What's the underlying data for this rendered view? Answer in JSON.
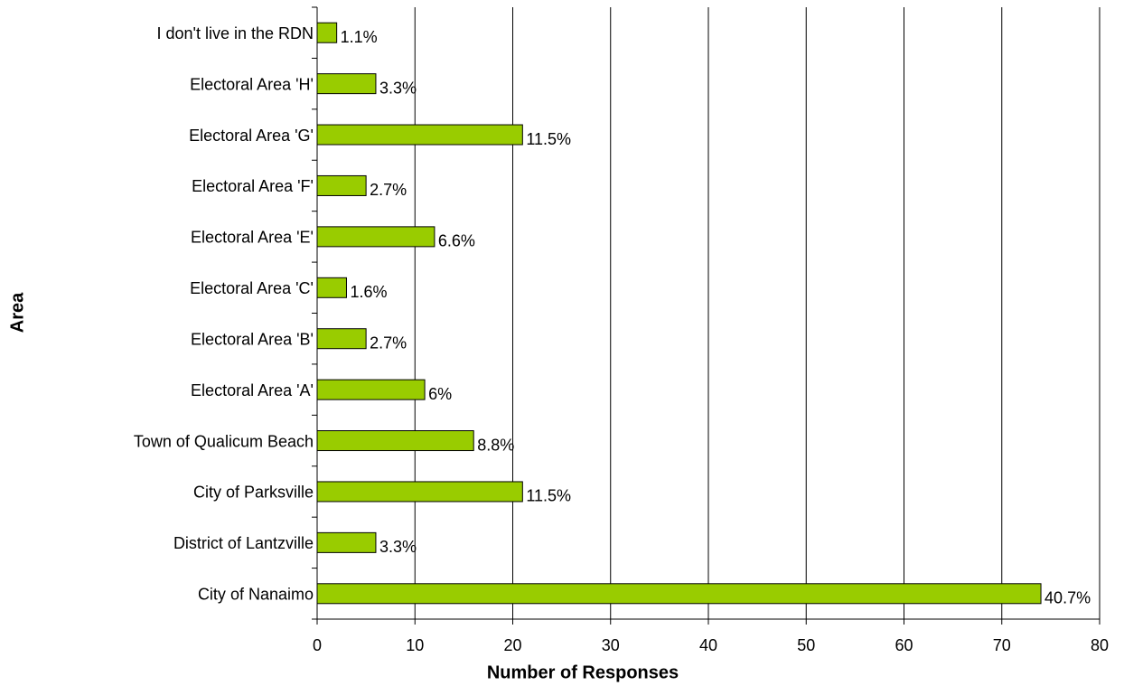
{
  "chart_data": {
    "type": "bar",
    "orientation": "horizontal",
    "categories": [
      "City of Nanaimo",
      "District of Lantzville",
      "City of Parksville",
      "Town of Qualicum Beach",
      "Electoral Area 'A'",
      "Electoral Area 'B'",
      "Electoral Area 'C'",
      "Electoral Area 'E'",
      "Electoral Area 'F'",
      "Electoral Area 'G'",
      "Electoral Area 'H'",
      "I don't live in the RDN"
    ],
    "values": [
      74,
      6,
      21,
      16,
      11,
      5,
      3,
      12,
      5,
      21,
      6,
      2
    ],
    "value_labels": [
      "40.7%",
      "3.3%",
      "11.5%",
      "8.8%",
      "6%",
      "2.7%",
      "1.6%",
      "6.6%",
      "2.7%",
      "11.5%",
      "3.3%",
      "1.1%"
    ],
    "color": "#99cc00",
    "xlim": [
      0,
      80
    ],
    "xticks": [
      0,
      10,
      20,
      30,
      40,
      50,
      60,
      70,
      80
    ],
    "x_label": "Number of Responses",
    "y_label": "Area",
    "grid": true
  }
}
